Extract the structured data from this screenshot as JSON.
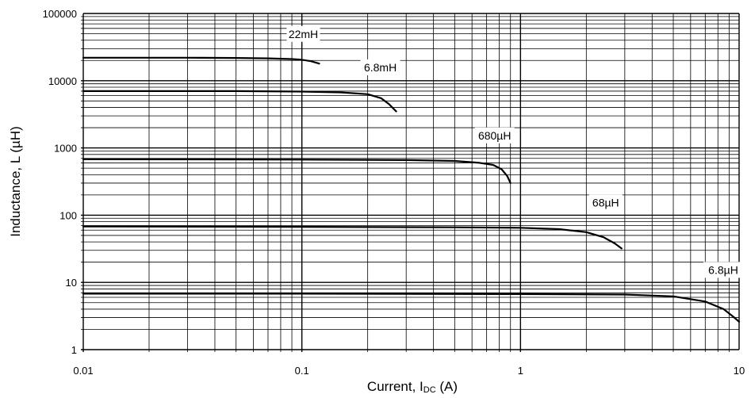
{
  "colors": {
    "top_bar": "#1f4e8c",
    "grid": "#000000",
    "curve": "#000000",
    "background": "#ffffff"
  },
  "chart_data": {
    "type": "line",
    "title": "",
    "xlabel": "Current, I",
    "xlabel_subscript": "DC",
    "xlabel_unit": " (A)",
    "ylabel": "Inductance, L (µH)",
    "x_scale": "log",
    "y_scale": "log",
    "xlim": [
      0.01,
      10
    ],
    "ylim": [
      1,
      100000
    ],
    "grid": true,
    "x_tick_labels": [
      "0.01",
      "0.1",
      "1",
      "10"
    ],
    "y_tick_labels": [
      "1",
      "10",
      "100",
      "1000",
      "10000",
      "100000"
    ],
    "series": [
      {
        "name": "22mH",
        "x": [
          0.01,
          0.03,
          0.05,
          0.07,
          0.09,
          0.1,
          0.11,
          0.12
        ],
        "y": [
          22000,
          22000,
          21800,
          21500,
          21000,
          20500,
          19500,
          18000
        ]
      },
      {
        "name": "6.8mH",
        "x": [
          0.01,
          0.05,
          0.1,
          0.15,
          0.2,
          0.23,
          0.25,
          0.27
        ],
        "y": [
          7000,
          7000,
          6900,
          6700,
          6300,
          5500,
          4500,
          3500
        ]
      },
      {
        "name": "680µH",
        "x": [
          0.01,
          0.1,
          0.3,
          0.5,
          0.65,
          0.75,
          0.82,
          0.87,
          0.9
        ],
        "y": [
          680,
          670,
          660,
          640,
          600,
          560,
          480,
          380,
          300
        ]
      },
      {
        "name": "68µH",
        "x": [
          0.01,
          0.1,
          0.5,
          1,
          1.5,
          2,
          2.4,
          2.7,
          2.9
        ],
        "y": [
          68,
          67,
          66,
          65,
          62,
          56,
          47,
          38,
          32
        ]
      },
      {
        "name": "6.8µH",
        "x": [
          0.01,
          0.1,
          1,
          3,
          5,
          7,
          8.5,
          9.5,
          10
        ],
        "y": [
          6.8,
          6.8,
          6.7,
          6.6,
          6.2,
          5.2,
          4.0,
          3.0,
          2.6
        ]
      }
    ]
  }
}
